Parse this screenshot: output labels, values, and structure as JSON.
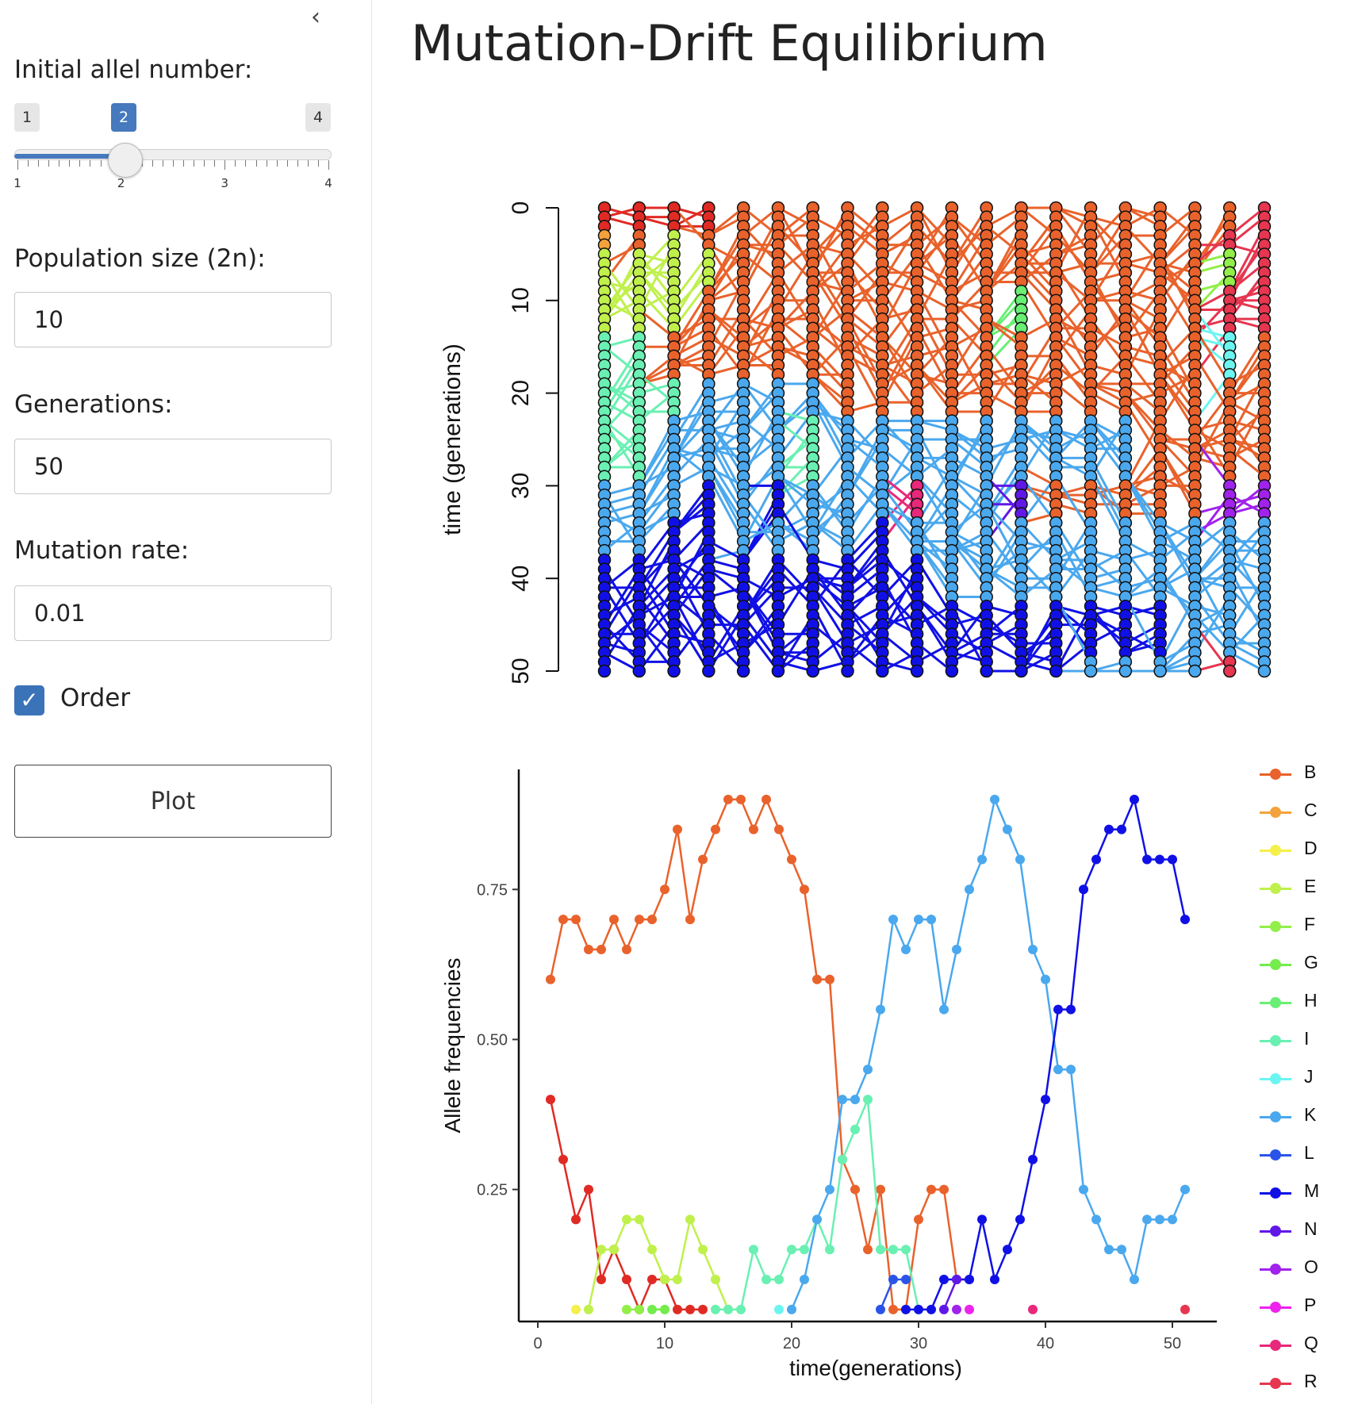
{
  "sidebar": {
    "collapse_icon": "chevron-left-icon",
    "allele_label": "Initial allel number:",
    "slider": {
      "min_label": "1",
      "max_label": "4",
      "value_label": "2",
      "min": 1,
      "max": 4,
      "value": 2,
      "tick_labels": [
        "1",
        "2",
        "3",
        "4"
      ]
    },
    "popsize_label": "Population size (2n):",
    "popsize_value": "10",
    "generations_label": "Generations:",
    "generations_value": "50",
    "mutation_label": "Mutation rate:",
    "mutation_value": "0.01",
    "order_label": "Order",
    "order_checked": true,
    "plot_button": "Plot"
  },
  "main": {
    "title": "Mutation-Drift Equilibrium"
  },
  "chart_data": [
    {
      "type": "line",
      "ylabel": "time (generations)",
      "yticks": [
        "0",
        "10",
        "20",
        "30",
        "40",
        "50"
      ],
      "ylim": [
        0,
        50
      ],
      "y_reversed": true,
      "rows": 51,
      "columns": 20,
      "colors": {
        "B": "#e9622b",
        "C": "#f2a33c",
        "D": "#f5f04a",
        "E": "#c0f04c",
        "F": "#92ee48",
        "G": "#74ec4c",
        "H": "#68ef74",
        "I": "#6af0b2",
        "J": "#6cf5f0",
        "K": "#4aa8ee",
        "L": "#2a54e8",
        "M": "#1010e6",
        "N": "#6018e6",
        "O": "#a022ec",
        "P": "#ee22ee",
        "Q": "#e8287a",
        "R": "#e63650",
        "A": "#e02a24"
      },
      "bands": [
        {
          "from": 0,
          "to": 2,
          "labels": [
            "A",
            "A",
            "A",
            "A",
            "B",
            "B",
            "B",
            "B",
            "B",
            "B",
            "B",
            "B",
            "B",
            "B",
            "B",
            "B",
            "B",
            "B",
            "B",
            "R"
          ]
        },
        {
          "from": 3,
          "to": 4,
          "labels": [
            "C",
            "B",
            "E",
            "B",
            "B",
            "B",
            "B",
            "B",
            "B",
            "B",
            "B",
            "B",
            "B",
            "B",
            "B",
            "B",
            "B",
            "B",
            "R",
            "R"
          ]
        },
        {
          "from": 5,
          "to": 8,
          "labels": [
            "E",
            "E",
            "E",
            "E",
            "B",
            "B",
            "B",
            "B",
            "B",
            "B",
            "B",
            "B",
            "B",
            "B",
            "B",
            "B",
            "B",
            "B",
            "F",
            "R"
          ]
        },
        {
          "from": 9,
          "to": 13,
          "labels": [
            "E",
            "E",
            "E",
            "B",
            "B",
            "B",
            "B",
            "B",
            "B",
            "B",
            "B",
            "B",
            "H",
            "B",
            "B",
            "B",
            "B",
            "B",
            "R",
            "R"
          ]
        },
        {
          "from": 14,
          "to": 18,
          "labels": [
            "I",
            "I",
            "B",
            "B",
            "B",
            "B",
            "B",
            "B",
            "B",
            "B",
            "B",
            "B",
            "B",
            "B",
            "B",
            "B",
            "B",
            "B",
            "J",
            "B"
          ]
        },
        {
          "from": 19,
          "to": 22,
          "labels": [
            "I",
            "I",
            "I",
            "K",
            "K",
            "K",
            "K",
            "B",
            "B",
            "B",
            "B",
            "B",
            "B",
            "B",
            "B",
            "B",
            "B",
            "B",
            "B",
            "B"
          ]
        },
        {
          "from": 23,
          "to": 29,
          "labels": [
            "I",
            "I",
            "K",
            "K",
            "K",
            "K",
            "I",
            "K",
            "K",
            "K",
            "K",
            "K",
            "K",
            "K",
            "K",
            "K",
            "B",
            "B",
            "B",
            "B"
          ]
        },
        {
          "from": 30,
          "to": 33,
          "labels": [
            "K",
            "K",
            "K",
            "M",
            "K",
            "M",
            "K",
            "K",
            "K",
            "Q",
            "K",
            "K",
            "N",
            "B",
            "B",
            "B",
            "B",
            "B",
            "O",
            "O"
          ]
        },
        {
          "from": 34,
          "to": 37,
          "labels": [
            "K",
            "K",
            "M",
            "M",
            "K",
            "K",
            "K",
            "K",
            "M",
            "K",
            "K",
            "K",
            "K",
            "K",
            "K",
            "K",
            "K",
            "K",
            "K",
            "K"
          ]
        },
        {
          "from": 38,
          "to": 42,
          "labels": [
            "M",
            "M",
            "M",
            "M",
            "M",
            "M",
            "M",
            "M",
            "M",
            "M",
            "K",
            "K",
            "K",
            "K",
            "K",
            "K",
            "K",
            "K",
            "K",
            "K"
          ]
        },
        {
          "from": 43,
          "to": 48,
          "labels": [
            "M",
            "M",
            "M",
            "M",
            "M",
            "M",
            "M",
            "M",
            "M",
            "M",
            "M",
            "M",
            "M",
            "M",
            "M",
            "M",
            "M",
            "K",
            "K",
            "K"
          ]
        },
        {
          "from": 49,
          "to": 50,
          "labels": [
            "M",
            "M",
            "M",
            "M",
            "M",
            "M",
            "M",
            "M",
            "M",
            "M",
            "M",
            "M",
            "M",
            "M",
            "K",
            "K",
            "K",
            "K",
            "R",
            "K"
          ]
        }
      ]
    },
    {
      "type": "line",
      "xlabel": "time(generations)",
      "ylabel": "Allele frequencies",
      "xticks": [
        0,
        10,
        20,
        30,
        40,
        50
      ],
      "yticks": [
        "0.25",
        "0.50",
        "0.75"
      ],
      "xlim": [
        -1.5,
        53.5
      ],
      "ylim": [
        0.03,
        0.95
      ],
      "series": [
        {
          "name": "A",
          "color": "#e02a24",
          "x": [
            1,
            2,
            3,
            4,
            5,
            6,
            7,
            8,
            9,
            10,
            11,
            12,
            13
          ],
          "y": [
            0.4,
            0.3,
            0.2,
            0.25,
            0.1,
            0.15,
            0.1,
            0.05,
            0.1,
            0.1,
            0.05,
            0.05,
            0.05
          ]
        },
        {
          "name": "B",
          "color": "#e9622b",
          "x": [
            1,
            2,
            3,
            4,
            5,
            6,
            7,
            8,
            9,
            10,
            11,
            12,
            13,
            14,
            15,
            16,
            17,
            18,
            19,
            20,
            21,
            22,
            23,
            24,
            25,
            26,
            27,
            28,
            29,
            30,
            31,
            32,
            33,
            34
          ],
          "y": [
            0.6,
            0.7,
            0.7,
            0.65,
            0.65,
            0.7,
            0.65,
            0.7,
            0.7,
            0.75,
            0.85,
            0.7,
            0.8,
            0.85,
            0.9,
            0.9,
            0.85,
            0.9,
            0.85,
            0.8,
            0.75,
            0.6,
            0.6,
            0.3,
            0.25,
            0.15,
            0.25,
            0.05,
            0.05,
            0.2,
            0.25,
            0.25,
            0.1,
            0.1
          ]
        },
        {
          "name": "C",
          "color": "#f2a33c",
          "x": [],
          "y": []
        },
        {
          "name": "D",
          "color": "#f5f04a",
          "x": [
            3
          ],
          "y": [
            0.05
          ]
        },
        {
          "name": "E",
          "color": "#c0f04c",
          "x": [
            4,
            5,
            6,
            7,
            8,
            9,
            10,
            11,
            12,
            13,
            14,
            15
          ],
          "y": [
            0.05,
            0.15,
            0.15,
            0.2,
            0.2,
            0.15,
            0.1,
            0.1,
            0.2,
            0.15,
            0.1,
            0.05
          ]
        },
        {
          "name": "F",
          "color": "#92ee48",
          "x": [
            7,
            8
          ],
          "y": [
            0.05,
            0.05
          ]
        },
        {
          "name": "G",
          "color": "#74ec4c",
          "x": [
            9,
            10
          ],
          "y": [
            0.05,
            0.05
          ]
        },
        {
          "name": "H",
          "color": "#68ef74",
          "x": [],
          "y": []
        },
        {
          "name": "I",
          "color": "#6af0b2",
          "x": [
            14,
            15,
            16,
            17,
            18,
            19,
            20,
            21,
            22,
            23,
            24,
            25,
            26,
            27,
            28,
            29,
            30
          ],
          "y": [
            0.05,
            0.05,
            0.05,
            0.15,
            0.1,
            0.1,
            0.15,
            0.15,
            0.2,
            0.15,
            0.3,
            0.35,
            0.4,
            0.15,
            0.15,
            0.15,
            0.05
          ]
        },
        {
          "name": "J",
          "color": "#6cf5f0",
          "x": [
            19
          ],
          "y": [
            0.05
          ]
        },
        {
          "name": "K",
          "color": "#4aa8ee",
          "x": [
            20,
            21,
            22,
            23,
            24,
            25,
            26,
            27,
            28,
            29,
            30,
            31,
            32,
            33,
            34,
            35,
            36,
            37,
            38,
            39,
            40,
            41,
            42,
            43,
            44,
            45,
            46,
            47,
            48,
            49,
            50,
            51
          ],
          "y": [
            0.05,
            0.1,
            0.2,
            0.25,
            0.4,
            0.4,
            0.45,
            0.55,
            0.7,
            0.65,
            0.7,
            0.7,
            0.55,
            0.65,
            0.75,
            0.8,
            0.9,
            0.85,
            0.8,
            0.65,
            0.6,
            0.45,
            0.45,
            0.25,
            0.2,
            0.15,
            0.15,
            0.1,
            0.2,
            0.2,
            0.2,
            0.25
          ]
        },
        {
          "name": "L",
          "color": "#2a54e8",
          "x": [
            27,
            28,
            29
          ],
          "y": [
            0.05,
            0.1,
            0.1
          ]
        },
        {
          "name": "M",
          "color": "#1010e6",
          "x": [
            29,
            30,
            31,
            32,
            33,
            34,
            35,
            36,
            37,
            38,
            39,
            40,
            41,
            42,
            43,
            44,
            45,
            46,
            47,
            48,
            49,
            50,
            51
          ],
          "y": [
            0.05,
            0.05,
            0.05,
            0.1,
            0.1,
            0.1,
            0.2,
            0.1,
            0.15,
            0.2,
            0.3,
            0.4,
            0.55,
            0.55,
            0.75,
            0.8,
            0.85,
            0.85,
            0.9,
            0.8,
            0.8,
            0.8,
            0.7
          ]
        },
        {
          "name": "N",
          "color": "#6018e6",
          "x": [
            32,
            33
          ],
          "y": [
            0.05,
            0.1
          ]
        },
        {
          "name": "O",
          "color": "#a022ec",
          "x": [
            33
          ],
          "y": [
            0.05
          ]
        },
        {
          "name": "P",
          "color": "#ee22ee",
          "x": [
            34
          ],
          "y": [
            0.05
          ]
        },
        {
          "name": "Q",
          "color": "#e8287a",
          "x": [
            39
          ],
          "y": [
            0.05
          ]
        },
        {
          "name": "R",
          "color": "#e63650",
          "x": [
            51
          ],
          "y": [
            0.05
          ]
        }
      ],
      "legend": [
        "B",
        "C",
        "D",
        "E",
        "F",
        "G",
        "H",
        "I",
        "J",
        "K",
        "L",
        "M",
        "N",
        "O",
        "P",
        "Q",
        "R"
      ],
      "legend_position": "right"
    }
  ]
}
